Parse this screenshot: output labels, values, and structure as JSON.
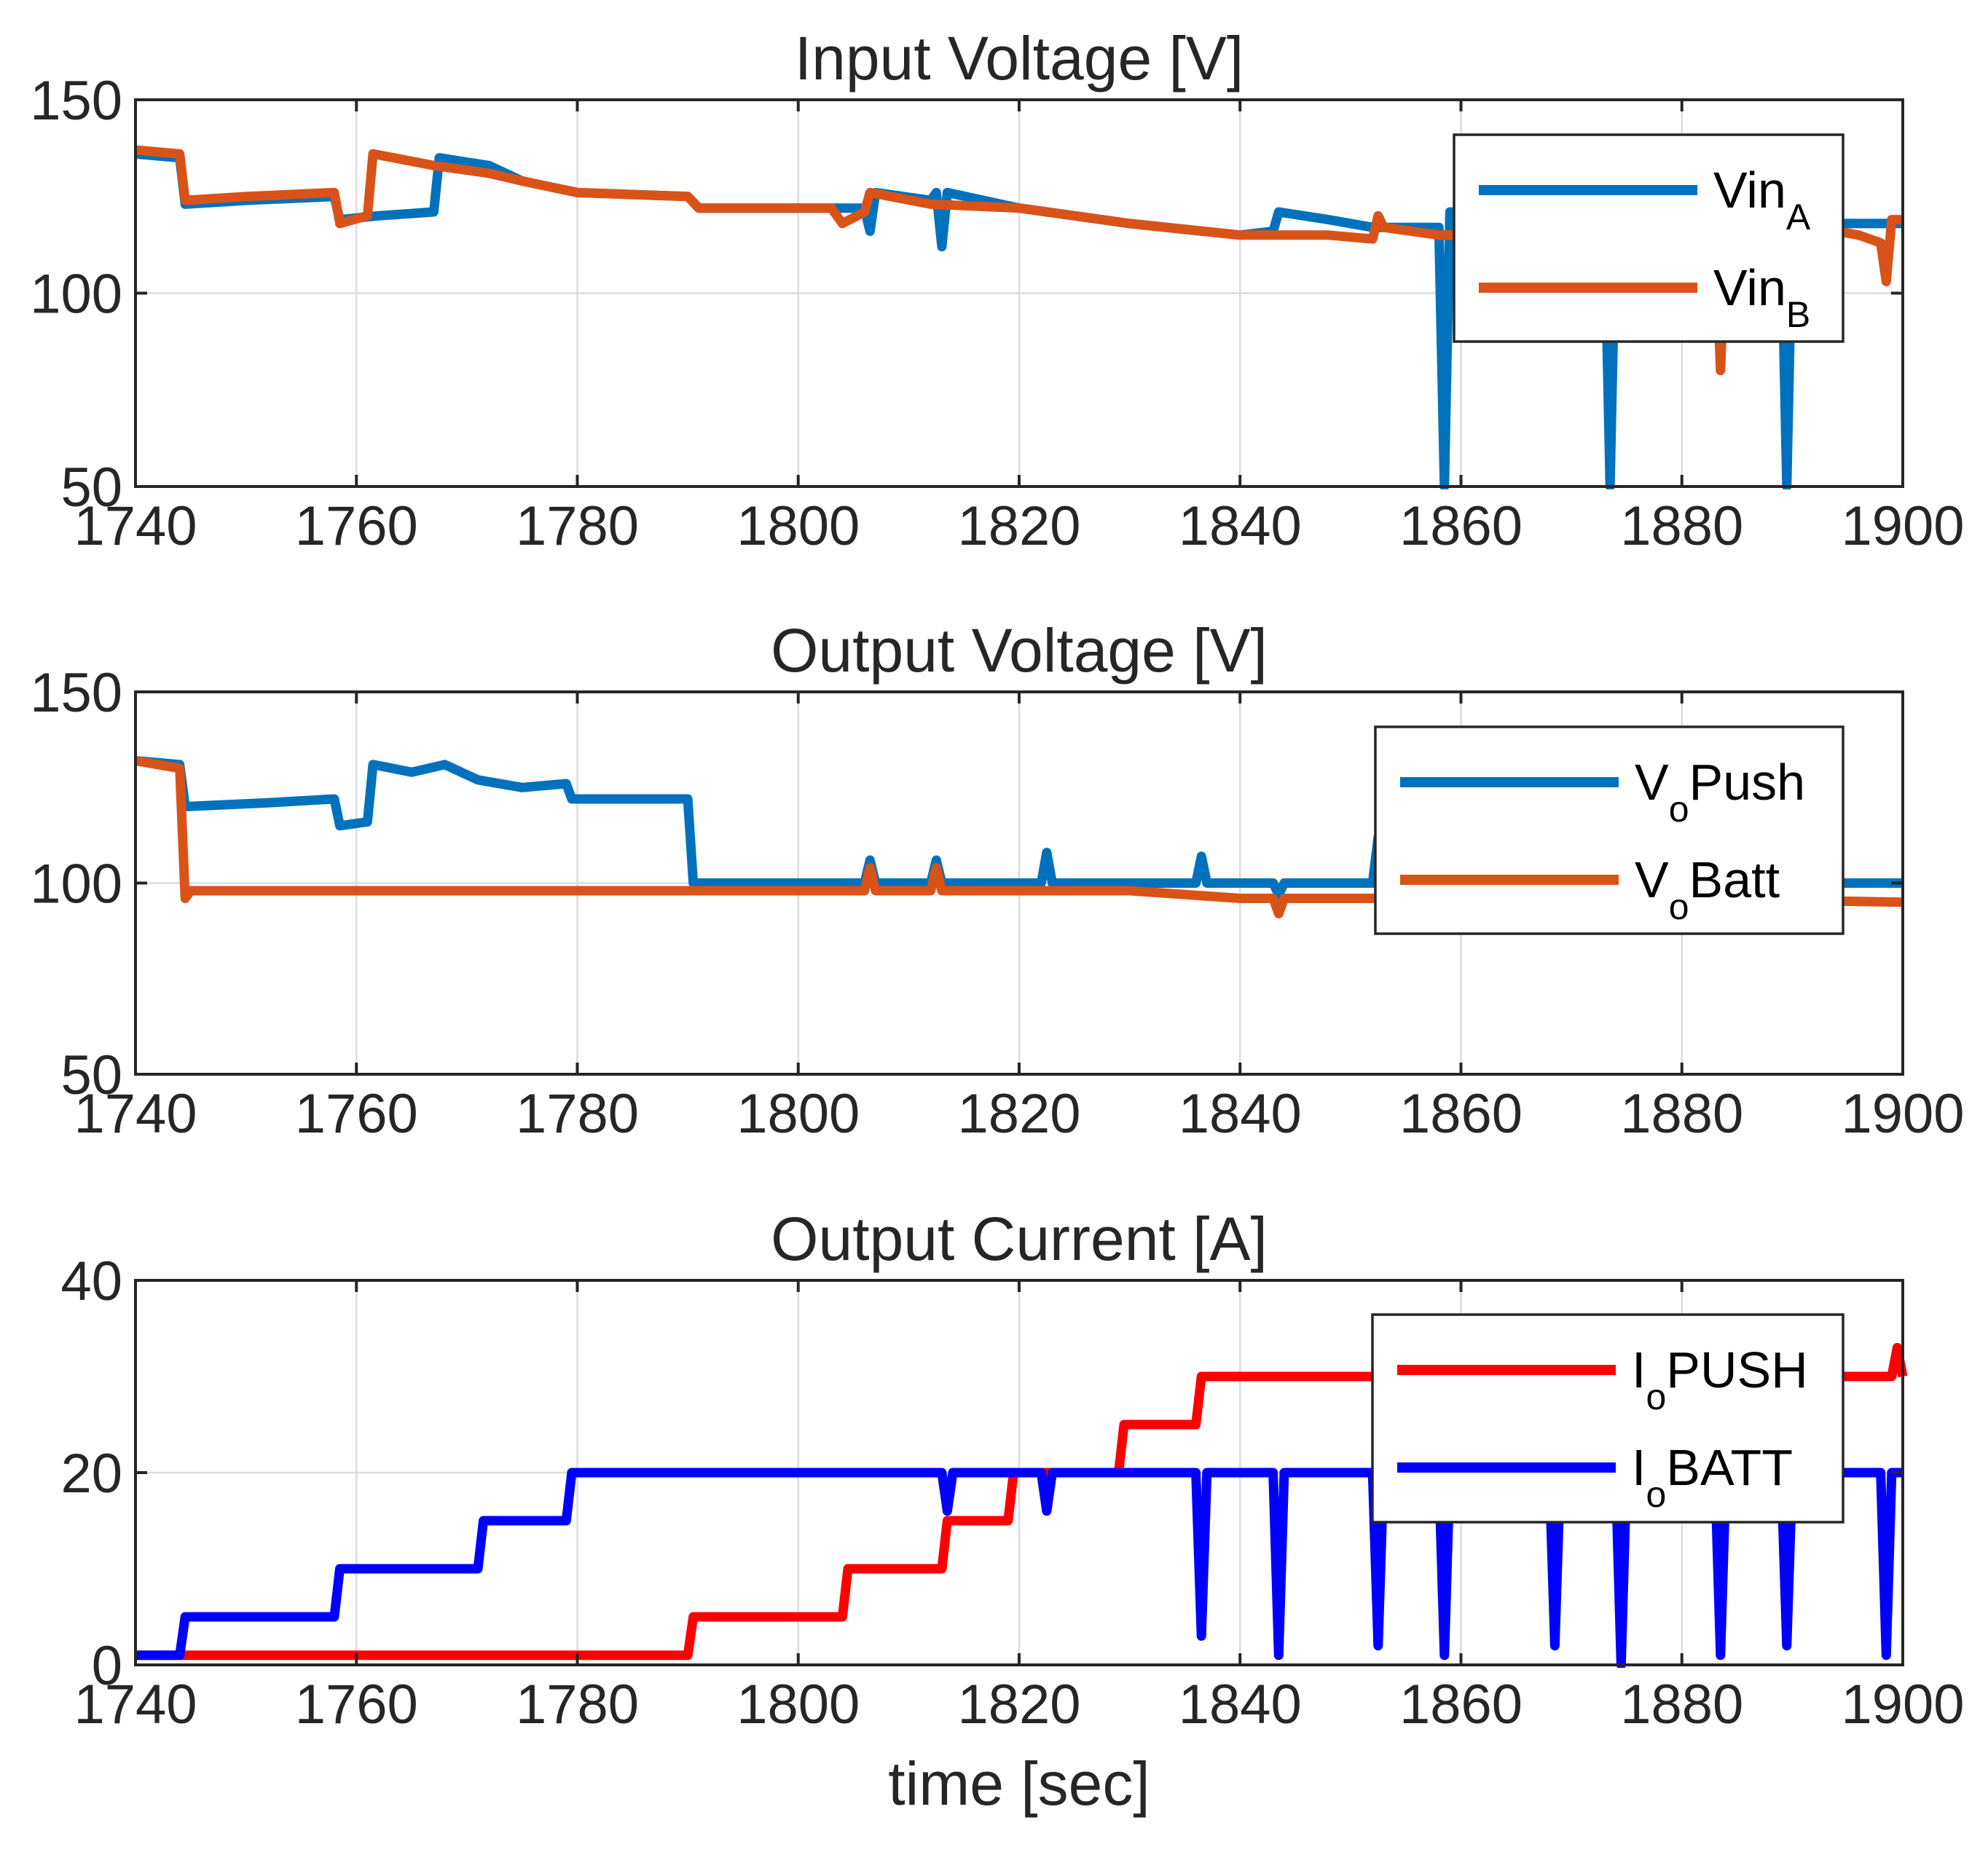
{
  "chart_data": [
    {
      "type": "line",
      "title": "Input Voltage [V]",
      "xlabel": "",
      "ylabel": "",
      "xlim": [
        1740,
        1900
      ],
      "ylim": [
        50,
        150
      ],
      "xticks": [
        "1740",
        "1760",
        "1780",
        "1800",
        "1820",
        "1840",
        "1860",
        "1880",
        "1900"
      ],
      "yticks": [
        "50",
        "100",
        "150"
      ],
      "grid": true,
      "legend": "top-right",
      "series": [
        {
          "name": "VinA",
          "label_main": "Vin",
          "label_sub": "A",
          "color": "#0072BD",
          "points": [
            [
              1740,
              136
            ],
            [
              1744,
              135
            ],
            [
              1744.5,
              123
            ],
            [
              1750,
              124
            ],
            [
              1758,
              125
            ],
            [
              1758.5,
              119
            ],
            [
              1762,
              120
            ],
            [
              1767,
              121
            ],
            [
              1767.5,
              135
            ],
            [
              1772,
              133
            ],
            [
              1775,
              129
            ],
            [
              1780,
              126
            ],
            [
              1790,
              125
            ],
            [
              1791,
              122
            ],
            [
              1804,
              122
            ],
            [
              1806,
              122
            ],
            [
              1806.5,
              116
            ],
            [
              1807,
              126
            ],
            [
              1812,
              124
            ],
            [
              1812.5,
              126
            ],
            [
              1813,
              112
            ],
            [
              1813.5,
              126
            ],
            [
              1820,
              122
            ],
            [
              1830,
              118
            ],
            [
              1840,
              115
            ],
            [
              1843,
              116
            ],
            [
              1843.5,
              121
            ],
            [
              1848,
              119
            ],
            [
              1852,
              117
            ],
            [
              1858,
              117
            ],
            [
              1858.5,
              50
            ],
            [
              1859,
              121
            ],
            [
              1873,
              118
            ],
            [
              1873.5,
              50
            ],
            [
              1874,
              118
            ],
            [
              1889,
              118
            ],
            [
              1889.5,
              50
            ],
            [
              1890,
              118
            ],
            [
              1900,
              118
            ]
          ]
        },
        {
          "name": "VinB",
          "label_main": "Vin",
          "label_sub": "B",
          "color": "#D95319",
          "points": [
            [
              1740,
              137
            ],
            [
              1744,
              136
            ],
            [
              1744.5,
              124
            ],
            [
              1750,
              125
            ],
            [
              1758,
              126
            ],
            [
              1758.5,
              118
            ],
            [
              1761,
              120
            ],
            [
              1761.5,
              136
            ],
            [
              1767,
              133
            ],
            [
              1772,
              131
            ],
            [
              1775,
              129
            ],
            [
              1780,
              126
            ],
            [
              1790,
              125
            ],
            [
              1791,
              122
            ],
            [
              1803,
              122
            ],
            [
              1804,
              118
            ],
            [
              1806,
              121
            ],
            [
              1806.5,
              126
            ],
            [
              1812,
              123
            ],
            [
              1820,
              122
            ],
            [
              1830,
              118
            ],
            [
              1840,
              115
            ],
            [
              1848,
              115
            ],
            [
              1852,
              114
            ],
            [
              1852.5,
              120
            ],
            [
              1853,
              117
            ],
            [
              1858,
              115
            ],
            [
              1860,
              115
            ],
            [
              1866,
              117
            ],
            [
              1875,
              119
            ],
            [
              1883,
              119
            ],
            [
              1883.5,
              80
            ],
            [
              1884,
              118
            ],
            [
              1892,
              117
            ],
            [
              1896,
              115
            ],
            [
              1898,
              113
            ],
            [
              1898.5,
              103
            ],
            [
              1899,
              119
            ],
            [
              1900,
              119
            ]
          ]
        }
      ]
    },
    {
      "type": "line",
      "title": "Output Voltage [V]",
      "xlabel": "",
      "ylabel": "",
      "xlim": [
        1740,
        1900
      ],
      "ylim": [
        50,
        150
      ],
      "xticks": [
        "1740",
        "1760",
        "1780",
        "1800",
        "1820",
        "1840",
        "1860",
        "1880",
        "1900"
      ],
      "yticks": [
        "50",
        "100",
        "150"
      ],
      "grid": true,
      "legend": "top-right",
      "series": [
        {
          "name": "VoPush",
          "label_main": "V",
          "label_sub": "o",
          "label_tail": "Push",
          "color": "#0072BD",
          "points": [
            [
              1740,
              132
            ],
            [
              1744,
              131
            ],
            [
              1744.5,
              120
            ],
            [
              1752,
              121
            ],
            [
              1758,
              122
            ],
            [
              1758.5,
              115
            ],
            [
              1761,
              116
            ],
            [
              1761.5,
              131
            ],
            [
              1765,
              129
            ],
            [
              1768,
              131
            ],
            [
              1771,
              127
            ],
            [
              1775,
              125
            ],
            [
              1779,
              126
            ],
            [
              1779.5,
              122
            ],
            [
              1785,
              122
            ],
            [
              1790,
              122
            ],
            [
              1790.5,
              100
            ],
            [
              1800,
              100
            ],
            [
              1806,
              100
            ],
            [
              1806.5,
              106
            ],
            [
              1807,
              100
            ],
            [
              1812,
              100
            ],
            [
              1812.5,
              106
            ],
            [
              1813,
              100
            ],
            [
              1822,
              100
            ],
            [
              1822.5,
              108
            ],
            [
              1823,
              100
            ],
            [
              1836,
              100
            ],
            [
              1836.5,
              107
            ],
            [
              1837,
              100
            ],
            [
              1843,
              100
            ],
            [
              1843.5,
              97
            ],
            [
              1844,
              100
            ],
            [
              1852,
              100
            ],
            [
              1852.5,
              112
            ],
            [
              1853,
              100
            ],
            [
              1860,
              100
            ],
            [
              1900,
              100
            ]
          ]
        },
        {
          "name": "VoBatt",
          "label_main": "V",
          "label_sub": "o",
          "label_tail": "Batt",
          "color": "#D95319",
          "points": [
            [
              1740,
              132
            ],
            [
              1744,
              130
            ],
            [
              1744.5,
              96
            ],
            [
              1745,
              98
            ],
            [
              1760,
              98
            ],
            [
              1780,
              98
            ],
            [
              1800,
              98
            ],
            [
              1806,
              98
            ],
            [
              1806.5,
              104
            ],
            [
              1807,
              98
            ],
            [
              1812,
              98
            ],
            [
              1812.5,
              104
            ],
            [
              1813,
              98
            ],
            [
              1830,
              98
            ],
            [
              1840,
              96
            ],
            [
              1843,
              96
            ],
            [
              1843.5,
              92
            ],
            [
              1844,
              96
            ],
            [
              1860,
              96
            ],
            [
              1880,
              96
            ],
            [
              1900,
              95
            ]
          ]
        }
      ]
    },
    {
      "type": "line",
      "title": "Output Current [A]",
      "xlabel": "time [sec]",
      "ylabel": "",
      "xlim": [
        1740,
        1900
      ],
      "ylim": [
        0,
        40
      ],
      "xticks": [
        "1740",
        "1760",
        "1780",
        "1800",
        "1820",
        "1840",
        "1860",
        "1880",
        "1900"
      ],
      "yticks": [
        "0",
        "20",
        "40"
      ],
      "grid": true,
      "legend": "top-right",
      "series": [
        {
          "name": "IoPUSH",
          "label_main": "I",
          "label_sub": "o",
          "label_tail": "PUSH",
          "color": "#FF0000",
          "points": [
            [
              1740,
              1
            ],
            [
              1790,
              1
            ],
            [
              1790.5,
              5
            ],
            [
              1804,
              5
            ],
            [
              1804.5,
              10
            ],
            [
              1813,
              10
            ],
            [
              1813.5,
              15
            ],
            [
              1819,
              15
            ],
            [
              1819.5,
              20
            ],
            [
              1829,
              20
            ],
            [
              1829.5,
              25
            ],
            [
              1836,
              25
            ],
            [
              1836.5,
              30
            ],
            [
              1850,
              30
            ],
            [
              1870,
              30
            ],
            [
              1880,
              30
            ],
            [
              1890,
              30
            ],
            [
              1899,
              30
            ],
            [
              1899.5,
              33
            ],
            [
              1900,
              30
            ]
          ]
        },
        {
          "name": "IoBATT",
          "label_main": "I",
          "label_sub": "o",
          "label_tail": "BATT",
          "color": "#0000FF",
          "points": [
            [
              1740,
              1
            ],
            [
              1744,
              1
            ],
            [
              1744.5,
              5
            ],
            [
              1758,
              5
            ],
            [
              1758.5,
              10
            ],
            [
              1771,
              10
            ],
            [
              1771.5,
              15
            ],
            [
              1779,
              15
            ],
            [
              1779.5,
              20
            ],
            [
              1800,
              20
            ],
            [
              1813,
              20
            ],
            [
              1813.5,
              16
            ],
            [
              1814,
              20
            ],
            [
              1822,
              20
            ],
            [
              1822.5,
              16
            ],
            [
              1823,
              20
            ],
            [
              1836,
              20
            ],
            [
              1836.5,
              3
            ],
            [
              1837,
              20
            ],
            [
              1843,
              20
            ],
            [
              1843.5,
              1
            ],
            [
              1844,
              20
            ],
            [
              1852,
              20
            ],
            [
              1852.5,
              2
            ],
            [
              1853,
              20
            ],
            [
              1858,
              20
            ],
            [
              1858.5,
              1
            ],
            [
              1859,
              20
            ],
            [
              1868,
              20
            ],
            [
              1868.5,
              2
            ],
            [
              1869,
              20
            ],
            [
              1874,
              20
            ],
            [
              1874.5,
              0
            ],
            [
              1875,
              20
            ],
            [
              1883,
              20
            ],
            [
              1883.5,
              1
            ],
            [
              1884,
              20
            ],
            [
              1889,
              20
            ],
            [
              1889.5,
              2
            ],
            [
              1890,
              20
            ],
            [
              1898,
              20
            ],
            [
              1898.5,
              1
            ],
            [
              1899,
              20
            ],
            [
              1900,
              20
            ]
          ]
        }
      ]
    }
  ]
}
